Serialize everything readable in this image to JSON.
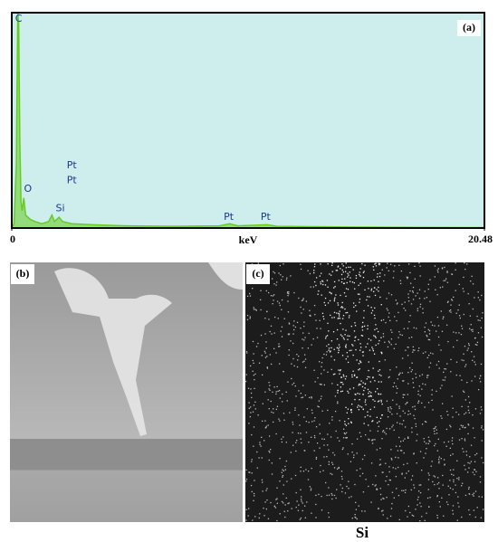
{
  "chart_data": {
    "type": "area",
    "panel_label": "(a)",
    "x_label": "keV",
    "x": [
      0,
      0.1,
      0.2,
      0.26,
      0.3,
      0.35,
      0.4,
      0.45,
      0.52,
      0.6,
      0.8,
      1.0,
      1.3,
      1.6,
      1.74,
      1.85,
      2.05,
      2.2,
      2.6,
      3.5,
      5,
      7,
      9,
      9.44,
      9.8,
      11.07,
      11.5,
      14,
      17,
      20.48
    ],
    "values": [
      0,
      2,
      30,
      100,
      95,
      40,
      12,
      8,
      14,
      6,
      4,
      3,
      2,
      3,
      6,
      3,
      5,
      3,
      2,
      1.5,
      1,
      0.8,
      1,
      2,
      1,
      1.5,
      0.8,
      0.5,
      0.3,
      0.2
    ],
    "color": "#66cc22",
    "background": "#cdeeed",
    "xlim": [
      0,
      20.48
    ],
    "ylim": [
      0,
      100
    ],
    "xticks": [
      0,
      20.48
    ],
    "annotations": [
      {
        "text": "C",
        "x": 0.3,
        "y": 97
      },
      {
        "text": "O",
        "x": 0.7,
        "y": 18
      },
      {
        "text": "Si",
        "x": 2.1,
        "y": 9
      },
      {
        "text": "Pt",
        "x": 2.6,
        "y": 29
      },
      {
        "text": "Pt",
        "x": 2.6,
        "y": 22
      },
      {
        "text": "Pt",
        "x": 9.4,
        "y": 5
      },
      {
        "text": "Pt",
        "x": 11.0,
        "y": 5
      }
    ]
  },
  "panels": [
    {
      "label": "(b)"
    },
    {
      "label": "(c)",
      "caption": "Si"
    }
  ]
}
